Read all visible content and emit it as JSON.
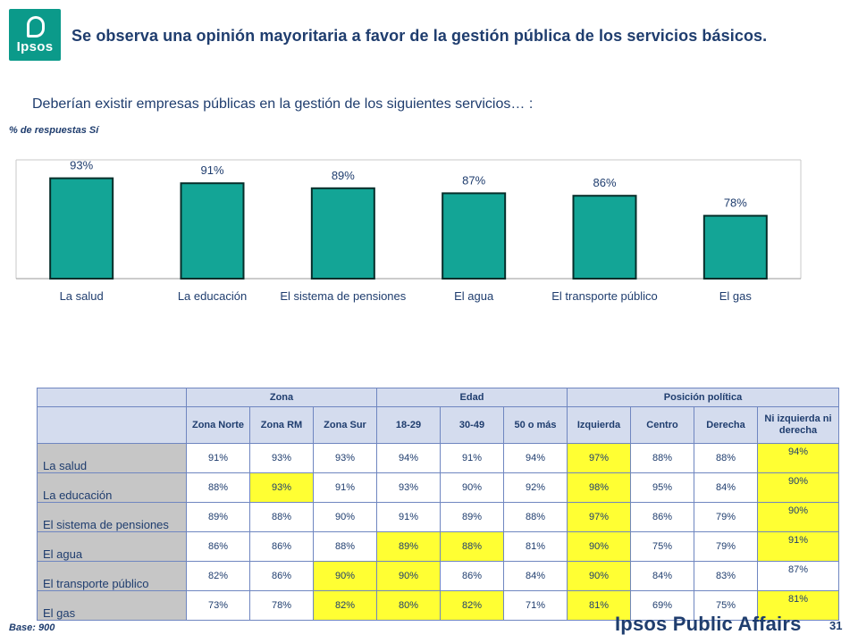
{
  "header": {
    "logo_text": "Ipsos",
    "title": "Se observa una opinión mayoritaria a favor de la gestión pública de los servicios básicos.",
    "subtitle": "Deberían existir empresas públicas en la gestión de los siguientes servicios… :",
    "note": "% de respuestas Sí"
  },
  "colors": {
    "bar": "#13a596",
    "bar_edge": "#062e2a",
    "highlight": "#ffff33",
    "header_bg": "#d4dcee",
    "label_bg": "#c6c6c6",
    "text": "#1f3d6e"
  },
  "chart_data": {
    "type": "bar",
    "categories": [
      "La salud",
      "La educación",
      "El sistema de pensiones",
      "El agua",
      "El transporte público",
      "El gas"
    ],
    "values": [
      93,
      91,
      89,
      87,
      86,
      78
    ],
    "data_labels": [
      "93%",
      "91%",
      "89%",
      "87%",
      "86%",
      "78%"
    ],
    "ylim": [
      0,
      100
    ],
    "grid": false
  },
  "table": {
    "groups": [
      {
        "label": "Zona",
        "span": 3
      },
      {
        "label": "Edad",
        "span": 3
      },
      {
        "label": "Posición política",
        "span": 4
      }
    ],
    "columns": [
      "Zona Norte",
      "Zona RM",
      "Zona Sur",
      "18-29",
      "30-49",
      "50 o más",
      "Izquierda",
      "Centro",
      "Derecha",
      "Ni izquierda ni derecha"
    ],
    "rows": [
      {
        "label": "La salud",
        "values": [
          "91%",
          "93%",
          "93%",
          "94%",
          "91%",
          "94%",
          "97%",
          "88%",
          "88%",
          "94%"
        ],
        "highlight": [
          6,
          9
        ]
      },
      {
        "label": "La educación",
        "values": [
          "88%",
          "93%",
          "91%",
          "93%",
          "90%",
          "92%",
          "98%",
          "95%",
          "84%",
          "90%"
        ],
        "highlight": [
          1,
          6,
          9
        ]
      },
      {
        "label": "El sistema de pensiones",
        "values": [
          "89%",
          "88%",
          "90%",
          "91%",
          "89%",
          "88%",
          "97%",
          "86%",
          "79%",
          "90%"
        ],
        "highlight": [
          6,
          9
        ]
      },
      {
        "label": "El agua",
        "values": [
          "86%",
          "86%",
          "88%",
          "89%",
          "88%",
          "81%",
          "90%",
          "75%",
          "79%",
          "91%"
        ],
        "highlight": [
          3,
          4,
          6,
          9
        ]
      },
      {
        "label": "El transporte público",
        "values": [
          "82%",
          "86%",
          "90%",
          "90%",
          "86%",
          "84%",
          "90%",
          "84%",
          "83%",
          "87%"
        ],
        "highlight": [
          2,
          3,
          6
        ]
      },
      {
        "label": "El gas",
        "values": [
          "73%",
          "78%",
          "82%",
          "80%",
          "82%",
          "71%",
          "81%",
          "69%",
          "75%",
          "81%"
        ],
        "highlight": [
          2,
          3,
          4,
          6,
          9
        ]
      }
    ]
  },
  "footer": {
    "base": "Base: 900",
    "brand": "Ipsos Public Affairs",
    "page": "31"
  }
}
